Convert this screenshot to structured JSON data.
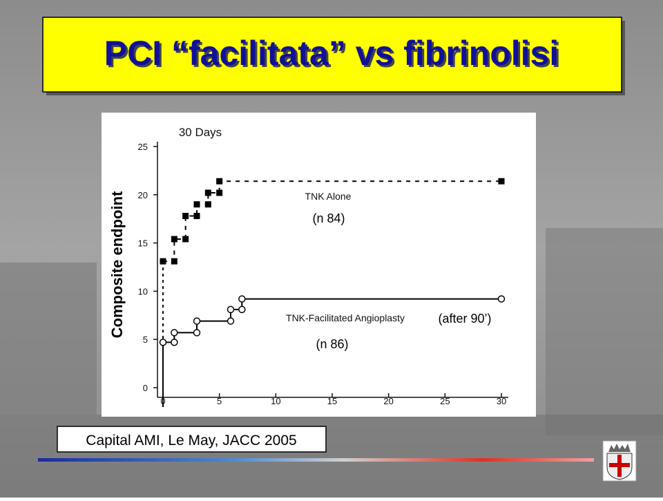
{
  "slide_title": "PCI “facilitata” vs fibrinolisi",
  "y_label": "Composite endpoint",
  "citation": "Capital AMI, Le May, JACC 2005",
  "chart_data": {
    "type": "step-line",
    "title": "30 Days",
    "xlim": [
      0,
      30
    ],
    "xticks": [
      0,
      5,
      10,
      15,
      20,
      25,
      30
    ],
    "ylim": [
      0,
      25
    ],
    "yticks": [
      0,
      5,
      10,
      15,
      20,
      25
    ],
    "grid": false,
    "series": [
      {
        "name": "TNK Alone",
        "color": "#000000",
        "dash": true,
        "marker": "square",
        "x": [
          0,
          1,
          1,
          2,
          2,
          3,
          3,
          4,
          4,
          5,
          5,
          30
        ],
        "values": [
          13.1,
          13.1,
          15.4,
          15.4,
          17.8,
          17.8,
          19.0,
          19.0,
          20.2,
          20.2,
          21.4,
          21.4
        ]
      },
      {
        "name": "TNK-Facilitated Angioplasty",
        "color": "#000000",
        "dash": false,
        "marker": "circle",
        "x": [
          0,
          1,
          1,
          3,
          3,
          6,
          6,
          7,
          7,
          30
        ],
        "values": [
          4.7,
          4.7,
          5.7,
          5.7,
          6.9,
          6.9,
          8.1,
          8.1,
          9.2,
          9.2
        ]
      }
    ],
    "annotations": [
      "(n  84)",
      "(n  86)",
      "(after 90’)"
    ]
  }
}
